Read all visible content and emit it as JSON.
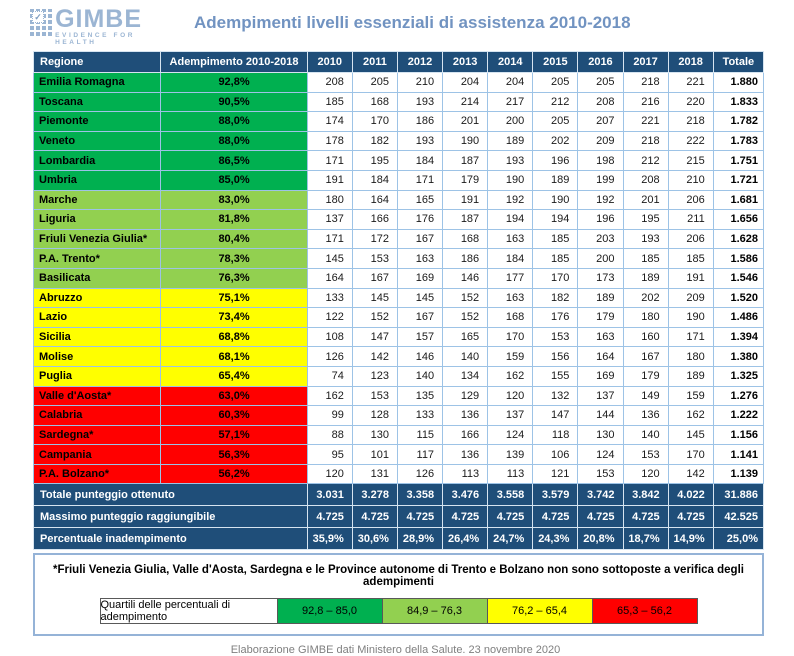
{
  "logo": {
    "name": "GIMBE",
    "tagline": "EVIDENCE FOR HEALTH",
    "check_glyph": "✓"
  },
  "title": "Adempimenti livelli essenziali di assistenza 2010-2018",
  "chart_data": {
    "type": "table",
    "title": "Adempimenti livelli essenziali di assistenza 2010-2018",
    "columns": [
      "Regione",
      "Adempimento 2010-2018",
      "2010",
      "2011",
      "2012",
      "2013",
      "2014",
      "2015",
      "2016",
      "2017",
      "2018",
      "Totale"
    ],
    "rows": [
      {
        "region": "Emilia Romagna",
        "adempimento": "92,8%",
        "tier": "green_dark",
        "values": [
          208,
          205,
          210,
          204,
          204,
          205,
          205,
          218,
          221
        ],
        "totale": "1.880"
      },
      {
        "region": "Toscana",
        "adempimento": "90,5%",
        "tier": "green_dark",
        "values": [
          185,
          168,
          193,
          214,
          217,
          212,
          208,
          216,
          220
        ],
        "totale": "1.833"
      },
      {
        "region": "Piemonte",
        "adempimento": "88,0%",
        "tier": "green_dark",
        "values": [
          174,
          170,
          186,
          201,
          200,
          205,
          207,
          221,
          218
        ],
        "totale": "1.782"
      },
      {
        "region": "Veneto",
        "adempimento": "88,0%",
        "tier": "green_dark",
        "values": [
          178,
          182,
          193,
          190,
          189,
          202,
          209,
          218,
          222
        ],
        "totale": "1.783"
      },
      {
        "region": "Lombardia",
        "adempimento": "86,5%",
        "tier": "green_dark",
        "values": [
          171,
          195,
          184,
          187,
          193,
          196,
          198,
          212,
          215
        ],
        "totale": "1.751"
      },
      {
        "region": "Umbria",
        "adempimento": "85,0%",
        "tier": "green_dark",
        "values": [
          191,
          184,
          171,
          179,
          190,
          189,
          199,
          208,
          210
        ],
        "totale": "1.721"
      },
      {
        "region": "Marche",
        "adempimento": "83,0%",
        "tier": "green_light",
        "values": [
          180,
          164,
          165,
          191,
          192,
          190,
          192,
          201,
          206
        ],
        "totale": "1.681"
      },
      {
        "region": "Liguria",
        "adempimento": "81,8%",
        "tier": "green_light",
        "values": [
          137,
          166,
          176,
          187,
          194,
          194,
          196,
          195,
          211
        ],
        "totale": "1.656"
      },
      {
        "region": "Friuli Venezia Giulia*",
        "adempimento": "80,4%",
        "tier": "green_light",
        "values": [
          171,
          172,
          167,
          168,
          163,
          185,
          203,
          193,
          206
        ],
        "totale": "1.628"
      },
      {
        "region": "P.A. Trento*",
        "adempimento": "78,3%",
        "tier": "green_light",
        "values": [
          145,
          153,
          163,
          186,
          184,
          185,
          200,
          185,
          185
        ],
        "totale": "1.586"
      },
      {
        "region": "Basilicata",
        "adempimento": "76,3%",
        "tier": "green_light",
        "values": [
          164,
          167,
          169,
          146,
          177,
          170,
          173,
          189,
          191
        ],
        "totale": "1.546"
      },
      {
        "region": "Abruzzo",
        "adempimento": "75,1%",
        "tier": "yellow",
        "values": [
          133,
          145,
          145,
          152,
          163,
          182,
          189,
          202,
          209
        ],
        "totale": "1.520"
      },
      {
        "region": "Lazio",
        "adempimento": "73,4%",
        "tier": "yellow",
        "values": [
          122,
          152,
          167,
          152,
          168,
          176,
          179,
          180,
          190
        ],
        "totale": "1.486"
      },
      {
        "region": "Sicilia",
        "adempimento": "68,8%",
        "tier": "yellow",
        "values": [
          108,
          147,
          157,
          165,
          170,
          153,
          163,
          160,
          171
        ],
        "totale": "1.394"
      },
      {
        "region": "Molise",
        "adempimento": "68,1%",
        "tier": "yellow",
        "values": [
          126,
          142,
          146,
          140,
          159,
          156,
          164,
          167,
          180
        ],
        "totale": "1.380"
      },
      {
        "region": "Puglia",
        "adempimento": "65,4%",
        "tier": "yellow",
        "values": [
          74,
          123,
          140,
          134,
          162,
          155,
          169,
          179,
          189
        ],
        "totale": "1.325"
      },
      {
        "region": "Valle d'Aosta*",
        "adempimento": "63,0%",
        "tier": "red",
        "values": [
          162,
          153,
          135,
          129,
          120,
          132,
          137,
          149,
          159
        ],
        "totale": "1.276"
      },
      {
        "region": "Calabria",
        "adempimento": "60,3%",
        "tier": "red",
        "values": [
          99,
          128,
          133,
          136,
          137,
          147,
          144,
          136,
          162
        ],
        "totale": "1.222"
      },
      {
        "region": "Sardegna*",
        "adempimento": "57,1%",
        "tier": "red",
        "values": [
          88,
          130,
          115,
          166,
          124,
          118,
          130,
          140,
          145
        ],
        "totale": "1.156"
      },
      {
        "region": "Campania",
        "adempimento": "56,3%",
        "tier": "red",
        "values": [
          95,
          101,
          117,
          136,
          139,
          106,
          124,
          153,
          170
        ],
        "totale": "1.141"
      },
      {
        "region": "P.A. Bolzano*",
        "adempimento": "56,2%",
        "tier": "red",
        "values": [
          120,
          131,
          126,
          113,
          113,
          121,
          153,
          120,
          142
        ],
        "totale": "1.139"
      }
    ],
    "summary_rows": [
      {
        "label": "Totale punteggio ottenuto",
        "values": [
          "3.031",
          "3.278",
          "3.358",
          "3.476",
          "3.558",
          "3.579",
          "3.742",
          "3.842",
          "4.022"
        ],
        "totale": "31.886"
      },
      {
        "label": "Massimo punteggio raggiungibile",
        "values": [
          "4.725",
          "4.725",
          "4.725",
          "4.725",
          "4.725",
          "4.725",
          "4.725",
          "4.725",
          "4.725"
        ],
        "totale": "42.525"
      },
      {
        "label": "Percentuale inadempimento",
        "values": [
          "35,9%",
          "30,6%",
          "28,9%",
          "26,4%",
          "24,7%",
          "24,3%",
          "20,8%",
          "18,7%",
          "14,9%"
        ],
        "totale": "25,0%"
      }
    ]
  },
  "footnote": "*Friuli Venezia Giulia, Valle d'Aosta, Sardegna e le Province autonome di Trento e Bolzano non sono sottoposte a verifica degli adempimenti",
  "legend": {
    "label": "Quartili delle percentuali di adempimento",
    "items": [
      {
        "range": "92,8 – 85,0",
        "color": "#00b050"
      },
      {
        "range": "84,9 – 76,3",
        "color": "#92d050"
      },
      {
        "range": "76,2 – 65,4",
        "color": "#ffff00"
      },
      {
        "range": "65,3 – 56,2",
        "color": "#ff0000"
      }
    ]
  },
  "source": "Elaborazione GIMBE dati Ministero della Salute. 23 novembre 2020",
  "colors": {
    "header_navy": "#1f4e79",
    "green_dark": "#00b050",
    "green_light": "#92d050",
    "yellow": "#ffff00",
    "red": "#ff0000",
    "cell_border": "#9dc3e6",
    "title_blue": "#7193c1",
    "logo_blue": "#9bb5d3",
    "source_gray": "#7f7f7f"
  }
}
